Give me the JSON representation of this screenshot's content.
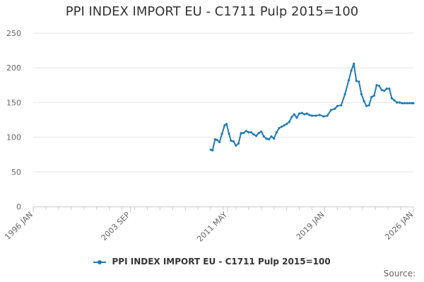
{
  "chart_data": {
    "type": "line",
    "title": "PPI INDEX IMPORT EU - C1711 Pulp 2015=100",
    "xlabel": "",
    "ylabel": "",
    "ylim": [
      0,
      250
    ],
    "yticks": [
      0,
      50,
      100,
      150,
      200,
      250
    ],
    "x_range": [
      1996.0,
      2026.0
    ],
    "xticks": [
      {
        "label": "1996 JAN",
        "value": 1996.0
      },
      {
        "label": "2003 SEP",
        "value": 2003.67
      },
      {
        "label": "2011 MAY",
        "value": 2011.33
      },
      {
        "label": "2019 JAN",
        "value": 2019.0
      },
      {
        "label": "2026 JAN",
        "value": 2026.0
      }
    ],
    "grid": true,
    "legend_position": "bottom",
    "source_label": "Source:",
    "series": [
      {
        "name": "PPI INDEX IMPORT EU - C1711 Pulp 2015=100",
        "color": "#1f7bb6",
        "x": [
          2010.0,
          2010.15,
          2010.35,
          2010.5,
          2010.7,
          2010.9,
          2011.1,
          2011.25,
          2011.45,
          2011.6,
          2011.8,
          2012.0,
          2012.2,
          2012.4,
          2012.6,
          2012.8,
          2013.0,
          2013.2,
          2013.4,
          2013.6,
          2013.8,
          2014.0,
          2014.2,
          2014.4,
          2014.6,
          2014.8,
          2015.0,
          2015.2,
          2015.4,
          2015.6,
          2015.8,
          2016.0,
          2016.2,
          2016.4,
          2016.6,
          2016.8,
          2017.0,
          2017.2,
          2017.4,
          2017.6,
          2017.8,
          2018.0,
          2018.3,
          2018.6,
          2018.9,
          2019.2,
          2019.5,
          2019.8,
          2020.0,
          2020.3,
          2020.6,
          2020.9,
          2021.1,
          2021.3,
          2021.5,
          2021.7,
          2021.9,
          2022.1,
          2022.3,
          2022.5,
          2022.7,
          2022.9,
          2023.1,
          2023.3,
          2023.5,
          2023.7,
          2023.9,
          2024.1,
          2024.3,
          2024.5,
          2024.7,
          2024.9,
          2025.1,
          2025.3,
          2025.5,
          2025.7,
          2025.9,
          2026.0
        ],
        "values": [
          82,
          81,
          97,
          96,
          93,
          105,
          117,
          119,
          105,
          95,
          94,
          88,
          91,
          106,
          106,
          109,
          107,
          107,
          104,
          102,
          106,
          108,
          101,
          98,
          97,
          101,
          98,
          107,
          113,
          115,
          117,
          119,
          122,
          129,
          133,
          128,
          134,
          135,
          133,
          134,
          132,
          131,
          131,
          132,
          130,
          131,
          139,
          141,
          145,
          146,
          162,
          182,
          196,
          206,
          181,
          180,
          162,
          152,
          145,
          146,
          158,
          160,
          175,
          174,
          168,
          167,
          170,
          170,
          156,
          153,
          150,
          150,
          149,
          149,
          149,
          149,
          149,
          149
        ]
      }
    ]
  }
}
